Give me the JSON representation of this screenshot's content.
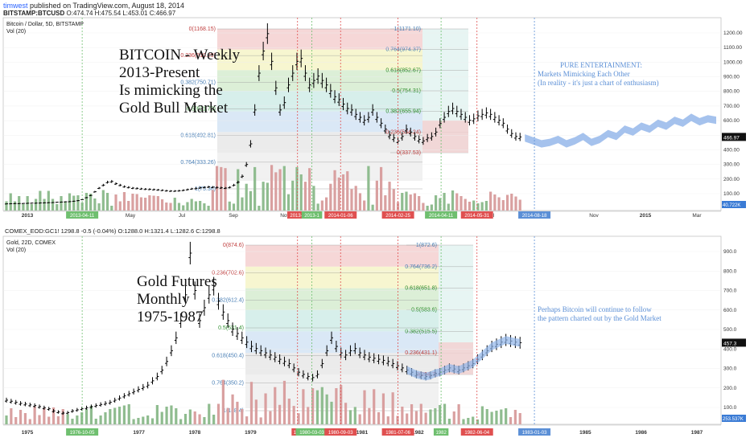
{
  "header": {
    "author": "timwest",
    "published": "published on TradingView.com, August 18, 2014",
    "symbol": "BITSTAMP:BTCUSD",
    "ohlc": "O:474.74  H:475.54  L:453.01  C:466.97"
  },
  "colors": {
    "up_vol": "#8fbc8f",
    "down_vol": "#d9a0a0",
    "price": "#000000",
    "projection": "#8fb3e8",
    "fib_red": "#f4d0d0",
    "fib_yellow": "#f6f4c8",
    "fib_green": "#d6ecd0",
    "fib_teal": "#d0ece8",
    "fib_blue": "#d4e4f4",
    "fib_gray": "#e8e8e8",
    "annotation_blue": "#5b8fd6",
    "marker_green": "#6fbf6f",
    "marker_red": "#e05050",
    "marker_blue": "#5b8fd6"
  },
  "chart_data": [
    {
      "type": "bar",
      "panel": "top",
      "label": "Bitcoin / Dollar, 5D, BITSTAMP",
      "vol_label": "Vol (20)",
      "ylim": [
        0,
        1200
      ],
      "y_ticks": [
        "1200.00",
        "1100.00",
        "1000.00",
        "900.00",
        "800.00",
        "700.00",
        "600.00",
        "500.00",
        "400.00",
        "300.00",
        "200.00",
        "100.00"
      ],
      "x_ticks": [
        "2013",
        "Mar",
        "May",
        "Jul",
        "Sep",
        "Nov",
        "2014",
        "Mar",
        "May",
        "Jul",
        "Sep",
        "Nov",
        "2015",
        "Mar"
      ],
      "last_price": "466.97",
      "vol_value": "40.722K",
      "fib_top": [
        "0(1168.15)",
        "0.236(910.29)",
        "0.382(750.71)",
        "0.5(621.73)",
        "0.618(492.81)",
        "0.764(333.26)",
        "1(75.36)"
      ],
      "fib_mid": [
        "1(1171.10)",
        "0.764(974.37)",
        "0.618(852.67)",
        "0.5(754.31)",
        "0.382(655.94)",
        "0.236(534.24)",
        "0(337.53)"
      ],
      "title_lines": [
        "BITCOIN - Weekly",
        "2013-Present",
        "Is mimicking the",
        "Gold Bull Market"
      ],
      "note_lines": [
        "PURE ENTERTAINMENT:",
        "Markets Mimicking Each Other",
        "(In reality - it's just a chart of enthusiasm)"
      ],
      "date_markers": [
        "2013-04-11",
        "2013-1",
        "2013-1",
        "2014-01-06",
        "2014-02-25",
        "2014-04-11",
        "2014-05-31",
        "2014-08-18"
      ],
      "series": [
        {
          "values": [
            13,
            14,
            15,
            15,
            16,
            17,
            18,
            18,
            19,
            20,
            21,
            22,
            24,
            25,
            27,
            28,
            31,
            35,
            42,
            55,
            70,
            95,
            120,
            140,
            160,
            165,
            150,
            140,
            130,
            125,
            120,
            118,
            115,
            113,
            112,
            110,
            108,
            105,
            102,
            100,
            100,
            102,
            105,
            110,
            115,
            118,
            122,
            125,
            128,
            126,
            124,
            122,
            120,
            125,
            140,
            160,
            200,
            280,
            420,
            650,
            900,
            1050,
            1168,
            980,
            800,
            650,
            700,
            820,
            900,
            980,
            1000,
            900,
            820,
            850,
            880,
            850,
            820,
            780,
            740,
            720,
            690,
            660,
            650,
            620,
            600,
            580,
            600,
            650,
            600,
            560,
            520,
            480,
            460,
            440,
            470,
            520,
            500,
            470,
            450,
            440,
            460,
            470,
            500,
            560,
            600,
            640,
            660,
            640,
            620,
            600,
            580,
            590,
            610,
            620,
            630,
            620,
            600,
            580,
            560,
            520,
            490,
            470,
            467
          ]
        }
      ],
      "projection": [
        460,
        440,
        420,
        430,
        450,
        420,
        440,
        470,
        430,
        450,
        490,
        470,
        520,
        500,
        540,
        520,
        560,
        540,
        580,
        560,
        600,
        570,
        590,
        580
      ]
    },
    {
      "type": "bar",
      "panel": "bottom",
      "label": "Gold, 22D, COMEX",
      "vol_label": "Vol (20)",
      "ylim": [
        100,
        900
      ],
      "y_ticks": [
        "900.0",
        "800.0",
        "700.0",
        "600.0",
        "500.0",
        "400.0",
        "300.0",
        "200.0",
        "100.0"
      ],
      "x_ticks": [
        "1975",
        "1976",
        "1977",
        "1978",
        "1979",
        "1980",
        "1981",
        "1982",
        "1983",
        "1984",
        "1985",
        "1986",
        "1987"
      ],
      "last_price": "457.3",
      "vol_value": "253.537K",
      "symbol_line": "COMEX_EOD:GC1!  1298.8  -0.5 (-0.04%)  O:1288.0  H:1321.4  L:1282.6  C:1298.8",
      "fib_top": [
        "0(874.6)",
        "0.236(702.6)",
        "0.382(612.4)",
        "0.5(531.4)",
        "0.618(450.4)",
        "0.764(350.2)",
        "1(188.4)"
      ],
      "fib_mid": [
        "1(872.6)",
        "0.764(736.2)",
        "0.618(651.8)",
        "0.5(583.6)",
        "0.382(515.5)",
        "0.236(431.1)",
        "0(294.7)"
      ],
      "title_lines": [
        "Gold Futures",
        "Monthly",
        "1975-1987"
      ],
      "note_lines": [
        "Perhaps Bitcoin will continue to follow",
        "the pattern charted out by the Gold Market"
      ],
      "date_markers": [
        "1976-10-05",
        "198",
        "1980-03-03",
        "1980-09-03",
        "1981-07-06",
        "1982",
        "1982-06-04",
        "1983-01-03"
      ],
      "series": [
        {
          "values": [
            190,
            185,
            180,
            175,
            172,
            168,
            165,
            160,
            155,
            150,
            140,
            135,
            130,
            132,
            140,
            145,
            150,
            155,
            160,
            165,
            170,
            175,
            180,
            190,
            200,
            210,
            220,
            230,
            240,
            250,
            260,
            280,
            300,
            330,
            370,
            420,
            480,
            560,
            680,
            874,
            700,
            560,
            620,
            680,
            720,
            650,
            600,
            560,
            520,
            500,
            480,
            460,
            440,
            430,
            420,
            410,
            400,
            390,
            380,
            370,
            360,
            340,
            320,
            310,
            300,
            295,
            310,
            360,
            420,
            480,
            440,
            410,
            400,
            420,
            430,
            410,
            400,
            390,
            385,
            380,
            375,
            370,
            360,
            350,
            340,
            330,
            320,
            310,
            305,
            300,
            305,
            315,
            320,
            330,
            340,
            335,
            330,
            340,
            350,
            360,
            380,
            400,
            420,
            440,
            450,
            460,
            470,
            465,
            460,
            457
          ]
        }
      ],
      "projection_band": true
    }
  ]
}
